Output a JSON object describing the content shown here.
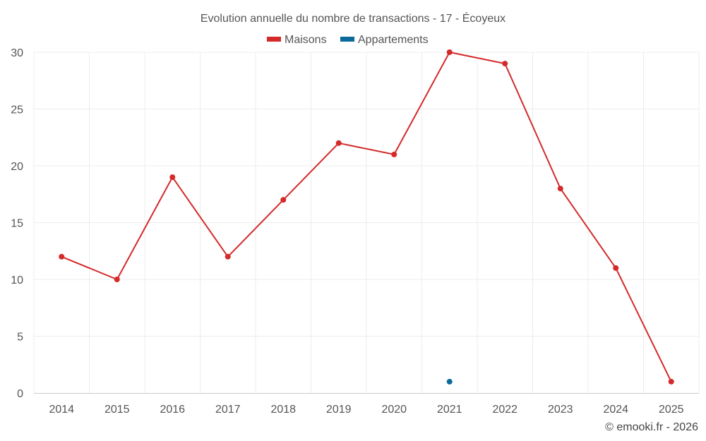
{
  "chart_data": {
    "type": "line",
    "title": "Evolution annuelle du nombre de transactions - 17 - Écoyeux",
    "categories": [
      "2014",
      "2015",
      "2016",
      "2017",
      "2018",
      "2019",
      "2020",
      "2021",
      "2022",
      "2023",
      "2024",
      "2025"
    ],
    "series": [
      {
        "name": "Maisons",
        "color": "#d42a2a",
        "values": [
          12,
          10,
          19,
          12,
          17,
          22,
          21,
          30,
          29,
          18,
          11,
          1
        ]
      },
      {
        "name": "Appartements",
        "color": "#0b6a9a",
        "values": [
          null,
          null,
          null,
          null,
          null,
          null,
          null,
          1,
          null,
          null,
          null,
          null
        ]
      }
    ],
    "ylim": [
      0,
      30
    ],
    "yticks": [
      "0",
      "5",
      "10",
      "15",
      "20",
      "25",
      "30"
    ],
    "grid": true,
    "legend_position": "top-center",
    "xlabel": "",
    "ylabel": ""
  },
  "credit": "© emooki.fr - 2026"
}
